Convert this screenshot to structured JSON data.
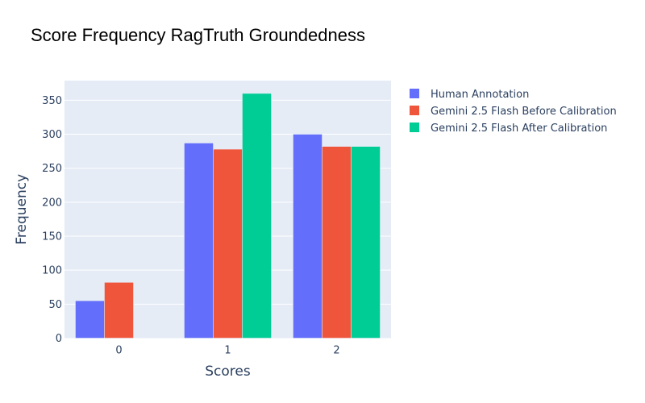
{
  "chart_data": {
    "type": "bar",
    "title": "Score Frequency RagTruth Groundedness",
    "xlabel": "Scores",
    "ylabel": "Frequency",
    "categories": [
      "0",
      "1",
      "2"
    ],
    "series": [
      {
        "name": "Human Annotation",
        "color": "#636efa",
        "values": [
          55,
          287,
          300
        ]
      },
      {
        "name": "Gemini 2.5 Flash Before Calibration",
        "color": "#ef553b",
        "values": [
          82,
          278,
          282
        ]
      },
      {
        "name": "Gemini 2.5 Flash After Calibration",
        "color": "#00cc96",
        "values": [
          0,
          360,
          282
        ]
      }
    ],
    "ylim": [
      0,
      378.9
    ],
    "yticks": [
      0,
      50,
      100,
      150,
      200,
      250,
      300,
      350
    ],
    "grid": true,
    "legend_position": "top-right-outside",
    "barmode": "group",
    "plot_bgcolor": "#e5ecf6"
  }
}
